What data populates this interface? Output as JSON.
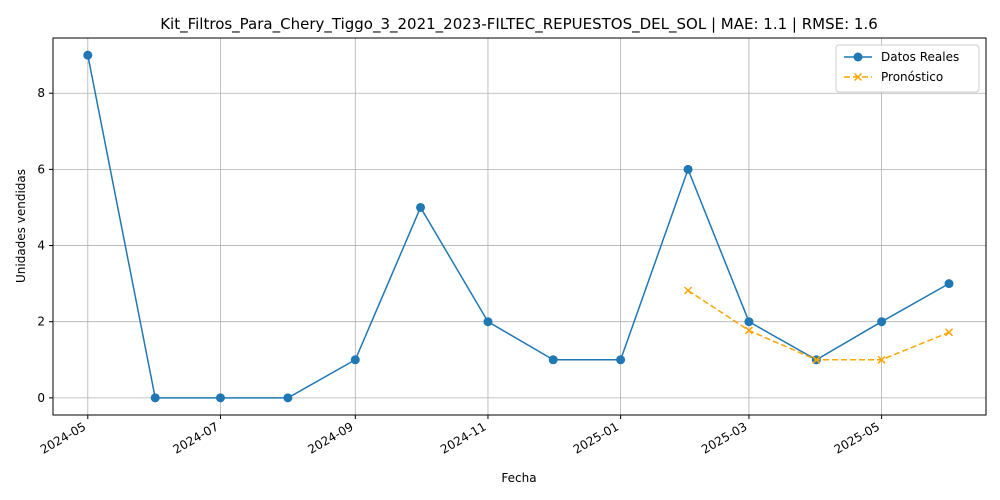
{
  "chart_data": {
    "type": "line",
    "title": "Kit_Filtros_Para_Chery_Tiggo_3_2021_2023-FILTEC_REPUESTOS_DEL_SOL | MAE: 1.1 | RMSE: 1.6",
    "xlabel": "Fecha",
    "ylabel": "Unidades vendidas",
    "ylim": [
      -0.45,
      9.45
    ],
    "xlim": [
      "2024-04-15",
      "2025-06-18"
    ],
    "x_ticks": [
      "2024-05",
      "2024-07",
      "2024-09",
      "2024-11",
      "2025-01",
      "2025-03",
      "2025-05"
    ],
    "y_ticks": [
      0,
      2,
      4,
      6,
      8
    ],
    "grid": true,
    "legend_position": "top-right",
    "series": [
      {
        "name": "Datos Reales",
        "color": "#1f77b4",
        "marker": "circle",
        "line_style": "solid",
        "x": [
          "2024-05-01",
          "2024-06-01",
          "2024-07-01",
          "2024-08-01",
          "2024-09-01",
          "2024-10-01",
          "2024-11-01",
          "2024-12-01",
          "2025-01-01",
          "2025-02-01",
          "2025-03-01",
          "2025-04-01",
          "2025-05-01",
          "2025-06-01"
        ],
        "values": [
          9,
          0,
          0,
          0,
          1,
          5,
          2,
          1,
          1,
          6,
          2,
          1,
          2,
          3
        ]
      },
      {
        "name": "Pronóstico",
        "color": "#ffa500",
        "marker": "x",
        "line_style": "dashed",
        "x": [
          "2025-02-01",
          "2025-03-01",
          "2025-04-01",
          "2025-05-01",
          "2025-06-01"
        ],
        "values": [
          2.82,
          1.77,
          1.0,
          1.0,
          1.72
        ]
      }
    ]
  }
}
